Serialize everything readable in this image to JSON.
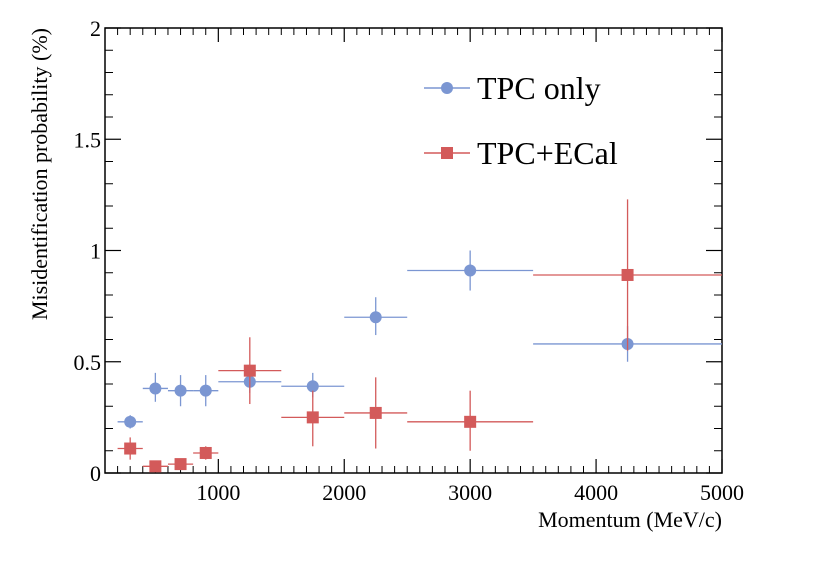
{
  "chart_data": {
    "type": "scatter",
    "title": "",
    "xlabel": "Momentum (MeV/c)",
    "ylabel": "Misidentification probability (%)",
    "xlim": [
      100,
      5000
    ],
    "ylim": [
      0,
      2
    ],
    "x_ticks": [
      {
        "value": 1000,
        "label": "1000"
      },
      {
        "value": 2000,
        "label": "2000"
      },
      {
        "value": 3000,
        "label": "3000"
      },
      {
        "value": 4000,
        "label": "4000"
      },
      {
        "value": 5000,
        "label": "5000"
      }
    ],
    "y_ticks": [
      {
        "value": 0,
        "label": "0"
      },
      {
        "value": 0.5,
        "label": "0.5"
      },
      {
        "value": 1,
        "label": "1"
      },
      {
        "value": 1.5,
        "label": "1.5"
      },
      {
        "value": 2,
        "label": "2"
      }
    ],
    "grid": false,
    "legend_position": "top-right",
    "series": [
      {
        "name": "TPC only",
        "marker": "circle",
        "color": "#7b96d2",
        "points": [
          {
            "x": 300,
            "y": 0.23,
            "xlo": 200,
            "xhi": 400,
            "ylo": 0.2,
            "yhi": 0.26
          },
          {
            "x": 500,
            "y": 0.38,
            "xlo": 400,
            "xhi": 600,
            "ylo": 0.32,
            "yhi": 0.45
          },
          {
            "x": 700,
            "y": 0.37,
            "xlo": 600,
            "xhi": 800,
            "ylo": 0.3,
            "yhi": 0.44
          },
          {
            "x": 900,
            "y": 0.37,
            "xlo": 800,
            "xhi": 1000,
            "ylo": 0.3,
            "yhi": 0.44
          },
          {
            "x": 1250,
            "y": 0.41,
            "xlo": 1000,
            "xhi": 1500,
            "ylo": 0.36,
            "yhi": 0.46
          },
          {
            "x": 1750,
            "y": 0.39,
            "xlo": 1500,
            "xhi": 2000,
            "ylo": 0.34,
            "yhi": 0.45
          },
          {
            "x": 2250,
            "y": 0.7,
            "xlo": 2000,
            "xhi": 2500,
            "ylo": 0.62,
            "yhi": 0.79
          },
          {
            "x": 3000,
            "y": 0.91,
            "xlo": 2500,
            "xhi": 3500,
            "ylo": 0.82,
            "yhi": 1.0
          },
          {
            "x": 4250,
            "y": 0.58,
            "xlo": 3500,
            "xhi": 5000,
            "ylo": 0.5,
            "yhi": 0.66
          }
        ]
      },
      {
        "name": "TPC+ECal",
        "marker": "square",
        "color": "#d35a5a",
        "points": [
          {
            "x": 300,
            "y": 0.11,
            "xlo": 200,
            "xhi": 400,
            "ylo": 0.06,
            "yhi": 0.16
          },
          {
            "x": 500,
            "y": 0.03,
            "xlo": 400,
            "xhi": 600,
            "ylo": 0.01,
            "yhi": 0.05
          },
          {
            "x": 700,
            "y": 0.04,
            "xlo": 600,
            "xhi": 800,
            "ylo": 0.02,
            "yhi": 0.06
          },
          {
            "x": 900,
            "y": 0.09,
            "xlo": 800,
            "xhi": 1000,
            "ylo": 0.06,
            "yhi": 0.12
          },
          {
            "x": 1250,
            "y": 0.46,
            "xlo": 1000,
            "xhi": 1500,
            "ylo": 0.31,
            "yhi": 0.61
          },
          {
            "x": 1750,
            "y": 0.25,
            "xlo": 1500,
            "xhi": 2000,
            "ylo": 0.12,
            "yhi": 0.37
          },
          {
            "x": 2250,
            "y": 0.27,
            "xlo": 2000,
            "xhi": 2500,
            "ylo": 0.11,
            "yhi": 0.43
          },
          {
            "x": 3000,
            "y": 0.23,
            "xlo": 2500,
            "xhi": 3500,
            "ylo": 0.1,
            "yhi": 0.37
          },
          {
            "x": 4250,
            "y": 0.89,
            "xlo": 3500,
            "xhi": 5000,
            "ylo": 0.55,
            "yhi": 1.23
          }
        ]
      }
    ]
  }
}
